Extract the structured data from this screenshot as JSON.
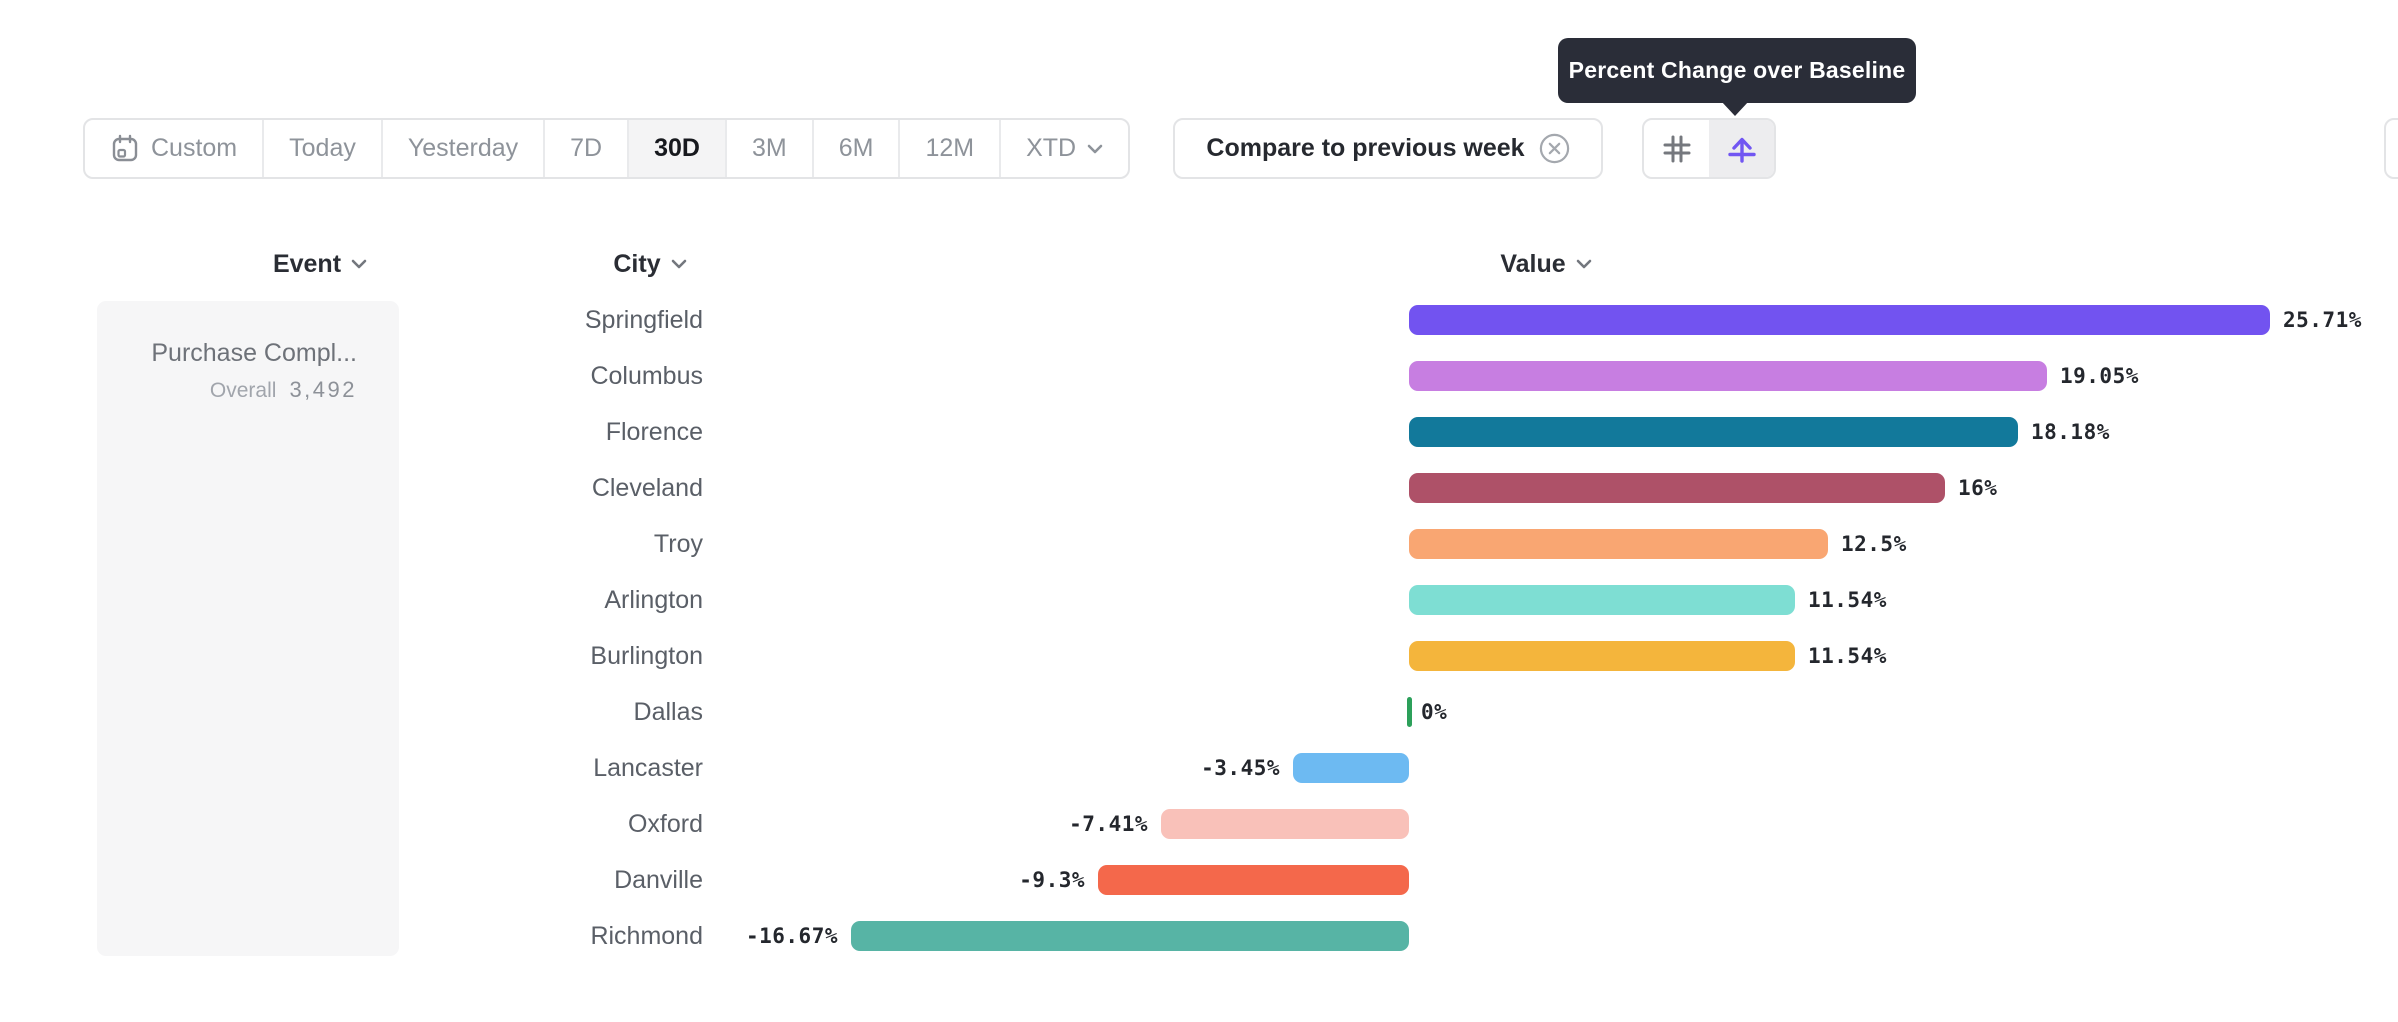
{
  "tooltip": {
    "text": "Percent Change over Baseline",
    "bg_color": "#2A2D38"
  },
  "toolbar": {
    "date_ranges": [
      {
        "label": "Custom",
        "icon": "calendar-icon",
        "selected": false
      },
      {
        "label": "Today",
        "selected": false
      },
      {
        "label": "Yesterday",
        "selected": false
      },
      {
        "label": "7D",
        "selected": false
      },
      {
        "label": "30D",
        "selected": true
      },
      {
        "label": "3M",
        "selected": false
      },
      {
        "label": "6M",
        "selected": false
      },
      {
        "label": "12M",
        "selected": false
      },
      {
        "label": "XTD",
        "selected": false,
        "has_chevron": true
      }
    ],
    "compare": {
      "label": "Compare to previous week",
      "icon": "close-circle-icon"
    },
    "view_toggles": [
      {
        "icon": "hash-grid-icon",
        "selected": false,
        "color": "#75787E"
      },
      {
        "icon": "baseline-lift-icon",
        "selected": true,
        "color": "#7156F2"
      }
    ]
  },
  "columns": {
    "event": "Event",
    "city": "City",
    "value": "Value"
  },
  "event_panel": {
    "title": "Purchase Compl...",
    "overall_label": "Overall",
    "overall_value": "3,492"
  },
  "chart_data": {
    "type": "bar",
    "orientation": "horizontal",
    "metric": "Percent Change over Baseline",
    "unit": "%",
    "baseline": 0,
    "category_axis_label": "City",
    "value_axis_label": "Value",
    "categories": [
      "Springfield",
      "Columbus",
      "Florence",
      "Cleveland",
      "Troy",
      "Arlington",
      "Burlington",
      "Dallas",
      "Lancaster",
      "Oxford",
      "Danville",
      "Richmond"
    ],
    "values": [
      25.71,
      19.05,
      18.18,
      16,
      12.5,
      11.54,
      11.54,
      0,
      -3.45,
      -7.41,
      -9.3,
      -16.67
    ],
    "labels": [
      "25.71%",
      "19.05%",
      "18.18%",
      "16%",
      "12.5%",
      "11.54%",
      "11.54%",
      "0%",
      "-3.45%",
      "-7.41%",
      "-9.3%",
      "-16.67%"
    ],
    "colors": [
      "#7253F0",
      "#C77EE1",
      "#12799B",
      "#AE5168",
      "#F9A672",
      "#7EDED3",
      "#F4B53C",
      "#2CA05A",
      "#6DBAF2",
      "#F9C1B9",
      "#F4684B",
      "#57B4A5"
    ]
  }
}
